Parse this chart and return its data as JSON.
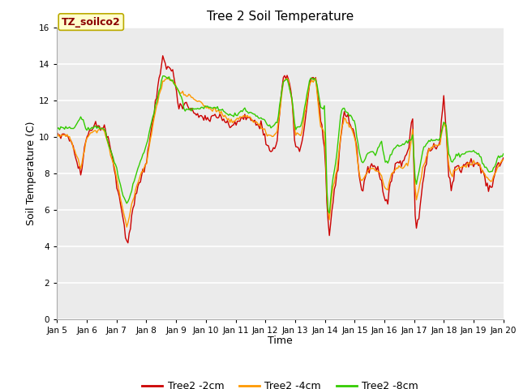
{
  "title": "Tree 2 Soil Temperature",
  "xlabel": "Time",
  "ylabel": "Soil Temperature (C)",
  "ylim": [
    0,
    16
  ],
  "yticks": [
    0,
    2,
    4,
    6,
    8,
    10,
    12,
    14,
    16
  ],
  "x_labels": [
    "Jan 5",
    "Jan 6",
    "Jan 7",
    "Jan 8",
    "Jan 9",
    "Jan 10",
    "Jan 11",
    "Jan 12",
    "Jan 13",
    "Jan 14",
    "Jan 15",
    "Jan 16",
    "Jan 17",
    "Jan 18",
    "Jan 19",
    "Jan 20"
  ],
  "annotation_text": "TZ_soilco2",
  "legend_labels": [
    "Tree2 -2cm",
    "Tree2 -4cm",
    "Tree2 -8cm"
  ],
  "line_colors": [
    "#cc0000",
    "#ff9900",
    "#33cc00"
  ],
  "fig_bg_color": "#ffffff",
  "plot_bg_color": "#ebebeb",
  "grid_color": "#ffffff",
  "linewidth": 1.0,
  "figsize": [
    6.4,
    4.8
  ],
  "dpi": 100
}
